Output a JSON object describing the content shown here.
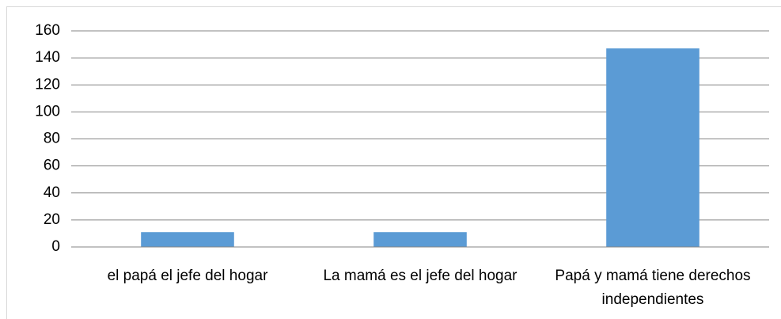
{
  "chart_data": {
    "type": "bar",
    "categories": [
      "el papá el jefe del hogar",
      "La mamá es el jefe del hogar",
      "Papá y mamá tiene derechos independientes"
    ],
    "values": [
      11,
      11,
      147
    ],
    "color": "#5b9bd5",
    "ylim": [
      0,
      160
    ],
    "yticks": [
      0,
      20,
      40,
      60,
      80,
      100,
      120,
      140,
      160
    ],
    "grid": true
  }
}
